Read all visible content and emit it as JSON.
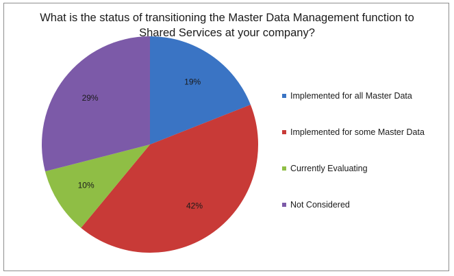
{
  "chart_data": {
    "type": "pie",
    "title_lines": [
      "What is the status of transitioning the Master Data Management function to",
      "Shared Services at your company?"
    ],
    "slices": [
      {
        "name": "Implemented for all Master Data",
        "value": 19,
        "label": "19%",
        "color": "#3a74c4"
      },
      {
        "name": "Implemented for some Master Data",
        "value": 42,
        "label": "42%",
        "color": "#c83a37"
      },
      {
        "name": "Currently Evaluating",
        "value": 10,
        "label": "10%",
        "color": "#8fbe45"
      },
      {
        "name": "Not Considered",
        "value": 29,
        "label": "29%",
        "color": "#7c5aa8"
      }
    ],
    "legend_position": "right"
  }
}
